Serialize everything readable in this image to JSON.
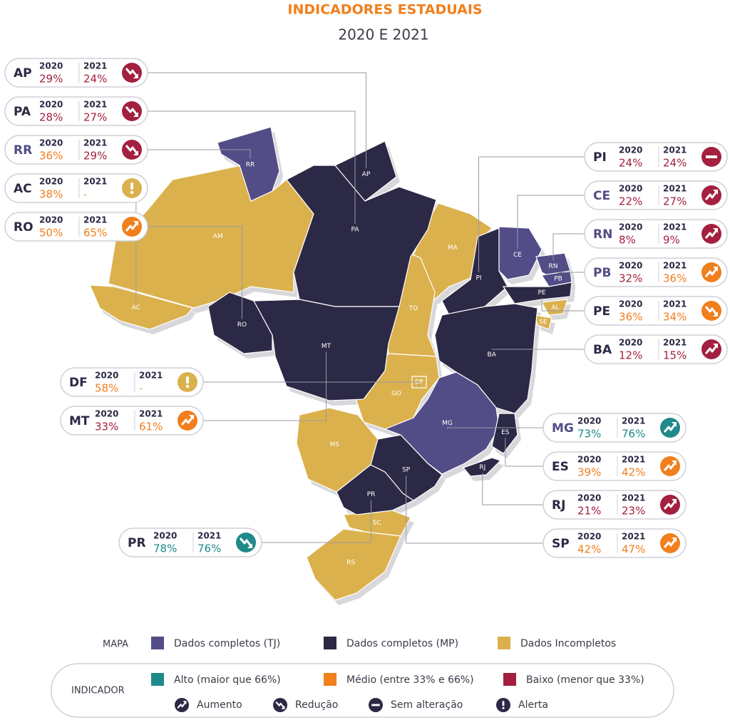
{
  "header": {
    "title": "INDICADORES ESTADUAIS",
    "subtitle": "2020 E 2021"
  },
  "year_labels": [
    "2020",
    "2021"
  ],
  "colors": {
    "tj": "#524d86",
    "mp": "#2b2945",
    "incompleto": "#dbb14d",
    "alto": "#1f8a8a",
    "medio": "#f07f1c",
    "baixo": "#a3203f",
    "alerta": "#dbb14d"
  },
  "states": [
    {
      "code": "AP",
      "v2020": "29%",
      "level2020": "baixo",
      "v2021": "24%",
      "level2021": "baixo",
      "trend": "reducao",
      "group": "mp"
    },
    {
      "code": "PA",
      "v2020": "28%",
      "level2020": "baixo",
      "v2021": "27%",
      "level2021": "baixo",
      "trend": "reducao",
      "group": "mp"
    },
    {
      "code": "RR",
      "v2020": "36%",
      "level2020": "medio",
      "v2021": "29%",
      "level2021": "baixo",
      "trend": "reducao",
      "group": "tj"
    },
    {
      "code": "AC",
      "v2020": "38%",
      "level2020": "medio",
      "v2021": "-",
      "level2021": null,
      "trend": "alerta",
      "group": "incompleto"
    },
    {
      "code": "RO",
      "v2020": "50%",
      "level2020": "medio",
      "v2021": "65%",
      "level2021": "medio",
      "trend": "aumento",
      "group": "mp"
    },
    {
      "code": "DF",
      "v2020": "58%",
      "level2020": "medio",
      "v2021": "-",
      "level2021": null,
      "trend": "alerta",
      "group": "incompleto"
    },
    {
      "code": "MT",
      "v2020": "33%",
      "level2020": "baixo",
      "v2021": "61%",
      "level2021": "medio",
      "trend": "aumento",
      "group": "mp"
    },
    {
      "code": "PR",
      "v2020": "78%",
      "level2020": "alto",
      "v2021": "76%",
      "level2021": "alto",
      "trend": "reducao",
      "group": "mp"
    },
    {
      "code": "PI",
      "v2020": "24%",
      "level2020": "baixo",
      "v2021": "24%",
      "level2021": "baixo",
      "trend": "sem",
      "group": "mp"
    },
    {
      "code": "CE",
      "v2020": "22%",
      "level2020": "baixo",
      "v2021": "27%",
      "level2021": "baixo",
      "trend": "aumento",
      "group": "tj"
    },
    {
      "code": "RN",
      "v2020": "8%",
      "level2020": "baixo",
      "v2021": "9%",
      "level2021": "baixo",
      "trend": "aumento",
      "group": "tj"
    },
    {
      "code": "PB",
      "v2020": "32%",
      "level2020": "baixo",
      "v2021": "36%",
      "level2021": "medio",
      "trend": "aumento",
      "group": "tj"
    },
    {
      "code": "PE",
      "v2020": "36%",
      "level2020": "medio",
      "v2021": "34%",
      "level2021": "medio",
      "trend": "reducao",
      "group": "mp"
    },
    {
      "code": "BA",
      "v2020": "12%",
      "level2020": "baixo",
      "v2021": "15%",
      "level2021": "baixo",
      "trend": "aumento",
      "group": "mp"
    },
    {
      "code": "MG",
      "v2020": "73%",
      "level2020": "alto",
      "v2021": "76%",
      "level2021": "alto",
      "trend": "aumento",
      "group": "tj"
    },
    {
      "code": "ES",
      "v2020": "39%",
      "level2020": "medio",
      "v2021": "42%",
      "level2021": "medio",
      "trend": "aumento",
      "group": "mp"
    },
    {
      "code": "RJ",
      "v2020": "21%",
      "level2020": "baixo",
      "v2021": "23%",
      "level2021": "baixo",
      "trend": "aumento",
      "group": "mp"
    },
    {
      "code": "SP",
      "v2020": "42%",
      "level2020": "medio",
      "v2021": "47%",
      "level2021": "medio",
      "trend": "aumento",
      "group": "mp"
    }
  ],
  "other_states": [
    {
      "code": "AM",
      "group": "incompleto"
    },
    {
      "code": "MA",
      "group": "incompleto"
    },
    {
      "code": "TO",
      "group": "incompleto"
    },
    {
      "code": "GO",
      "group": "incompleto"
    },
    {
      "code": "MS",
      "group": "incompleto"
    },
    {
      "code": "SC",
      "group": "incompleto"
    },
    {
      "code": "RS",
      "group": "incompleto"
    },
    {
      "code": "AL",
      "group": "incompleto"
    },
    {
      "code": "SE",
      "group": "incompleto"
    }
  ],
  "legend": {
    "map_title": "MAPA",
    "map_items": [
      {
        "group": "tj",
        "label": "Dados completos (TJ)"
      },
      {
        "group": "mp",
        "label": "Dados completos (MP)"
      },
      {
        "group": "incompleto",
        "label": "Dados Incompletos"
      }
    ],
    "indicator_title": "INDICADOR",
    "level_items": [
      {
        "level": "alto",
        "label": "Alto (maior que 66%)"
      },
      {
        "level": "medio",
        "label": "Médio (entre 33% e 66%)"
      },
      {
        "level": "baixo",
        "label": "Baixo (menor que 33%)"
      }
    ],
    "icon_items": [
      {
        "trend": "aumento",
        "label": "Aumento"
      },
      {
        "trend": "reducao",
        "label": "Redução"
      },
      {
        "trend": "sem",
        "label": "Sem alteração"
      },
      {
        "trend": "alerta",
        "label": "Alerta"
      }
    ]
  }
}
